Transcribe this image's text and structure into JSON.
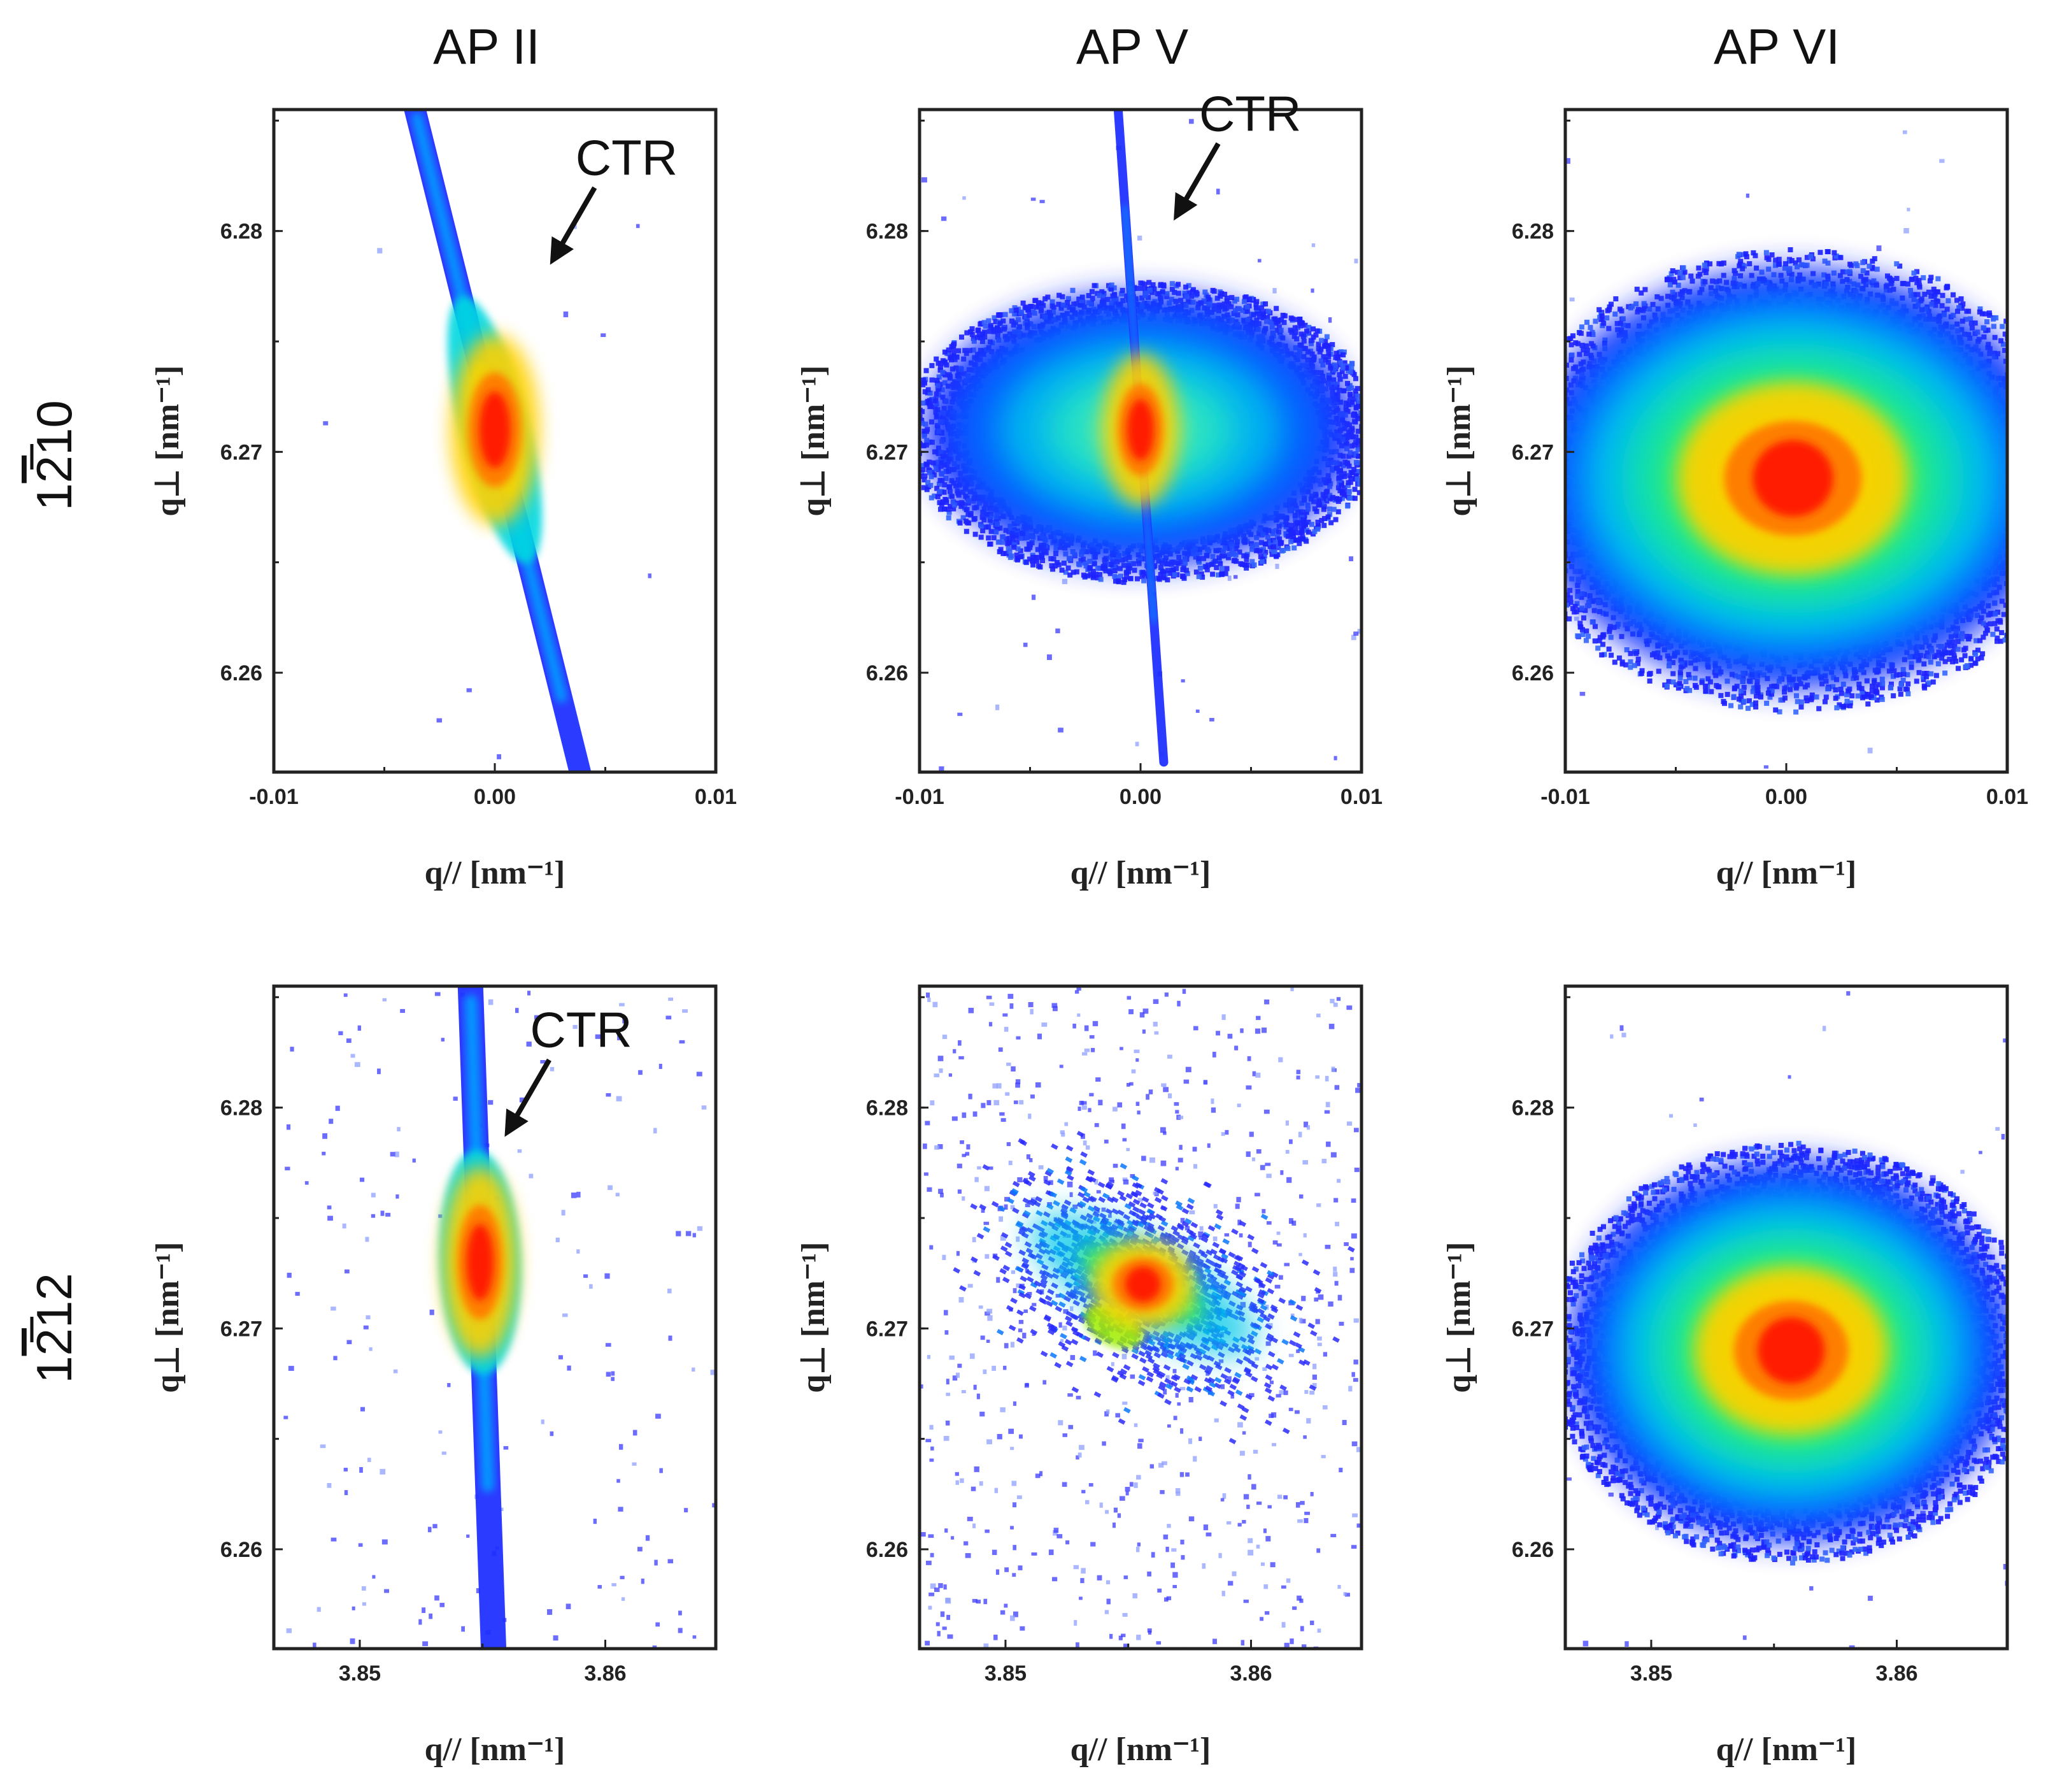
{
  "figure": {
    "column_titles": [
      "AP II",
      "AP V",
      "AP VI"
    ],
    "row_labels": [
      {
        "prefix": "1",
        "bar": "2",
        "suffix": "10"
      },
      {
        "prefix": "1",
        "bar": "2",
        "suffix": "12"
      }
    ]
  },
  "chart_data": [
    {
      "type": "heatmap",
      "id": "r0c0",
      "title": "AP II",
      "row_label": "1-210",
      "xlabel": "q// [nm⁻¹]",
      "ylabel": "q⊥ [nm⁻¹]",
      "xlim": [
        -0.01,
        0.01
      ],
      "ylim": [
        6.2555,
        6.2855
      ],
      "xticks": [
        -0.01,
        0.0,
        0.01
      ],
      "xtick_labels": [
        "-0.01",
        "0.00",
        "0.01"
      ],
      "yticks": [
        6.26,
        6.27,
        6.28
      ],
      "ytick_labels": [
        "6.26",
        "6.27",
        "6.28"
      ],
      "peak": {
        "x": 0.0,
        "y": 6.271
      },
      "annotation": {
        "text": "CTR",
        "x": 0.0025,
        "y": 6.2785
      },
      "colormap": "jet"
    },
    {
      "type": "heatmap",
      "id": "r0c1",
      "title": "AP V",
      "row_label": "1-210",
      "xlabel": "q// [nm⁻¹]",
      "ylabel": "q⊥ [nm⁻¹]",
      "xlim": [
        -0.01,
        0.01
      ],
      "ylim": [
        6.2555,
        6.2855
      ],
      "xticks": [
        -0.01,
        0.0,
        0.01
      ],
      "xtick_labels": [
        "-0.01",
        "0.00",
        "0.01"
      ],
      "yticks": [
        6.26,
        6.27,
        6.28
      ],
      "ytick_labels": [
        "6.26",
        "6.27",
        "6.28"
      ],
      "peak": {
        "x": 0.0,
        "y": 6.271
      },
      "annotation": {
        "text": "CTR",
        "x": 0.0015,
        "y": 6.2805
      },
      "colormap": "jet"
    },
    {
      "type": "heatmap",
      "id": "r0c2",
      "title": "AP VI",
      "row_label": "1-210",
      "xlabel": "q// [nm⁻¹]",
      "ylabel": "q⊥ [nm⁻¹]",
      "xlim": [
        -0.01,
        0.01
      ],
      "ylim": [
        6.2555,
        6.2855
      ],
      "xticks": [
        -0.01,
        0.0,
        0.01
      ],
      "xtick_labels": [
        "-0.01",
        "0.00",
        "0.01"
      ],
      "yticks": [
        6.26,
        6.27,
        6.28
      ],
      "ytick_labels": [
        "6.26",
        "6.27",
        "6.28"
      ],
      "peak": {
        "x": 0.0003,
        "y": 6.2688
      },
      "colormap": "jet"
    },
    {
      "type": "heatmap",
      "id": "r1c0",
      "title": "AP II",
      "row_label": "1-212",
      "xlabel": "q// [nm⁻¹]",
      "ylabel": "q⊥ [nm⁻¹]",
      "xlim": [
        3.8465,
        3.8645
      ],
      "ylim": [
        6.2555,
        6.2855
      ],
      "xticks": [
        3.85,
        3.86
      ],
      "xtick_labels": [
        "3.85",
        "3.86"
      ],
      "yticks": [
        6.26,
        6.27,
        6.28
      ],
      "ytick_labels": [
        "6.26",
        "6.27",
        "6.28"
      ],
      "peak": {
        "x": 3.8549,
        "y": 6.273
      },
      "annotation": {
        "text": "CTR",
        "x": 3.8559,
        "y": 6.2787
      },
      "colormap": "jet"
    },
    {
      "type": "heatmap",
      "id": "r1c1",
      "title": "AP V",
      "row_label": "1-212",
      "xlabel": "q// [nm⁻¹]",
      "ylabel": "q⊥ [nm⁻¹]",
      "xlim": [
        3.8465,
        3.8645
      ],
      "ylim": [
        6.2555,
        6.2855
      ],
      "xticks": [
        3.85,
        3.86
      ],
      "xtick_labels": [
        "3.85",
        "3.86"
      ],
      "yticks": [
        6.26,
        6.27,
        6.28
      ],
      "ytick_labels": [
        "6.26",
        "6.27",
        "6.28"
      ],
      "peak": {
        "x": 3.8556,
        "y": 6.272
      },
      "colormap": "jet"
    },
    {
      "type": "heatmap",
      "id": "r1c2",
      "title": "AP VI",
      "row_label": "1-212",
      "xlabel": "q// [nm⁻¹]",
      "ylabel": "q⊥ [nm⁻¹]",
      "xlim": [
        3.8465,
        3.8645
      ],
      "ylim": [
        6.2555,
        6.2855
      ],
      "xticks": [
        3.85,
        3.86
      ],
      "xtick_labels": [
        "3.85",
        "3.86"
      ],
      "yticks": [
        6.26,
        6.27,
        6.28
      ],
      "ytick_labels": [
        "6.26",
        "6.27",
        "6.28"
      ],
      "peak": {
        "x": 3.8557,
        "y": 6.269
      },
      "colormap": "jet"
    }
  ]
}
